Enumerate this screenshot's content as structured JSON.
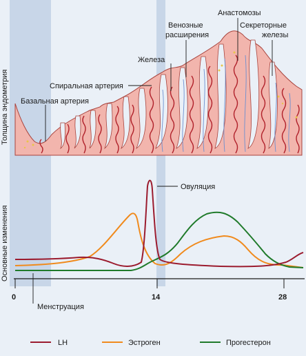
{
  "top_panel": {
    "y_axis_label": "Толщина эндометрия",
    "labels": {
      "basal_artery": "Базальная артерия",
      "spiral_artery": "Спиральная артерия",
      "gland": "Железа",
      "venous_1": "Венозные",
      "venous_2": "расширения",
      "anastomoses": "Анастомозы",
      "secretory_1": "Секреторные",
      "secretory_2": "железы"
    }
  },
  "bottom_panel": {
    "y_axis_label": "Основные изменения",
    "ovulation_label": "Овуляция",
    "menstruation_label": "Менструация",
    "x_ticks": [
      "0",
      "14",
      "28"
    ]
  },
  "legend": [
    {
      "label": "LH",
      "color": "#9b1b2e"
    },
    {
      "label": "Эстроген",
      "color": "#f08a1c"
    },
    {
      "label": "Прогестерон",
      "color": "#1f7a2a"
    }
  ],
  "colors": {
    "background": "#eaf0f7",
    "highlight": "#c8d6e8",
    "endometrium_fill": "#f2b5ad",
    "endometrium_edge": "#a8433d",
    "artery": "#b0202a",
    "vein": "#6b8fd0",
    "gland_dots": "#e8c54a"
  }
}
